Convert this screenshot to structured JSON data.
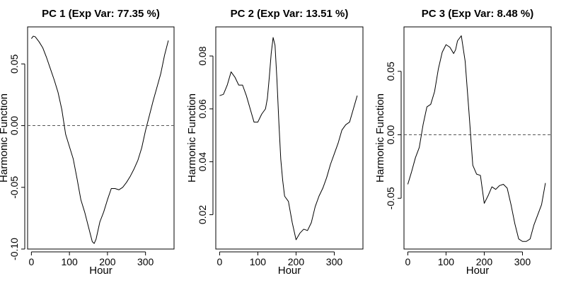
{
  "chart_data": [
    {
      "type": "line",
      "title": "PC 1 (Exp Var: 77.35 %)",
      "xlabel": "Hour",
      "ylabel": "Harmonic Function",
      "xlim": [
        -10,
        375
      ],
      "ylim": [
        -0.1,
        0.08
      ],
      "xticks": [
        "0",
        "100",
        "200",
        "300"
      ],
      "yticks": [
        "-0.10",
        "-0.05",
        "0.00",
        "0.05"
      ],
      "reference_line": 0,
      "series": [
        {
          "x": [
            0,
            5,
            10,
            20,
            30,
            40,
            50,
            60,
            70,
            80,
            90,
            100,
            110,
            120,
            130,
            140,
            150,
            160,
            165,
            170,
            180,
            190,
            200,
            210,
            220,
            230,
            240,
            250,
            260,
            270,
            280,
            290,
            300,
            310,
            320,
            330,
            340,
            350,
            360
          ],
          "y": [
            0.0705,
            0.0725,
            0.072,
            0.068,
            0.063,
            0.055,
            0.046,
            0.037,
            0.027,
            0.013,
            -0.007,
            -0.017,
            -0.027,
            -0.043,
            -0.06,
            -0.07,
            -0.082,
            -0.094,
            -0.0955,
            -0.092,
            -0.078,
            -0.07,
            -0.06,
            -0.051,
            -0.051,
            -0.052,
            -0.05,
            -0.046,
            -0.041,
            -0.035,
            -0.028,
            -0.018,
            -0.004,
            0.008,
            0.02,
            0.031,
            0.042,
            0.057,
            0.069
          ]
        }
      ]
    },
    {
      "type": "line",
      "title": "PC 2 (Exp Var: 13.51 %)",
      "xlabel": "Hour",
      "ylabel": "Harmonic Function",
      "xlim": [
        -10,
        375
      ],
      "ylim": [
        0.007,
        0.091
      ],
      "xticks": [
        "0",
        "100",
        "200",
        "300"
      ],
      "yticks": [
        "0.02",
        "0.04",
        "0.06",
        "0.08"
      ],
      "series": [
        {
          "x": [
            0,
            10,
            20,
            30,
            40,
            50,
            60,
            70,
            80,
            90,
            100,
            110,
            120,
            125,
            130,
            135,
            140,
            145,
            150,
            155,
            160,
            165,
            170,
            180,
            190,
            200,
            210,
            220,
            230,
            240,
            250,
            260,
            270,
            280,
            290,
            300,
            310,
            320,
            330,
            340,
            350,
            360
          ],
          "y": [
            0.065,
            0.0655,
            0.069,
            0.074,
            0.072,
            0.069,
            0.069,
            0.065,
            0.06,
            0.055,
            0.055,
            0.058,
            0.06,
            0.064,
            0.072,
            0.081,
            0.087,
            0.084,
            0.071,
            0.055,
            0.041,
            0.033,
            0.027,
            0.025,
            0.017,
            0.0105,
            0.013,
            0.0145,
            0.014,
            0.017,
            0.023,
            0.027,
            0.03,
            0.034,
            0.039,
            0.043,
            0.047,
            0.052,
            0.054,
            0.055,
            0.06,
            0.065
          ]
        }
      ]
    },
    {
      "type": "line",
      "title": "PC 3 (Exp Var: 8.48 %)",
      "xlabel": "Hour",
      "ylabel": "Harmonic Function",
      "xlim": [
        -10,
        375
      ],
      "ylim": [
        -0.09,
        0.085
      ],
      "xticks": [
        "0",
        "100",
        "200",
        "300"
      ],
      "yticks": [
        "-0.05",
        "0.00",
        "0.05"
      ],
      "reference_line": 0,
      "series": [
        {
          "x": [
            0,
            10,
            20,
            30,
            40,
            50,
            60,
            70,
            80,
            90,
            100,
            110,
            120,
            125,
            130,
            140,
            150,
            160,
            170,
            180,
            190,
            200,
            210,
            220,
            230,
            240,
            250,
            260,
            270,
            280,
            290,
            300,
            310,
            320,
            330,
            340,
            350,
            360
          ],
          "y": [
            -0.039,
            -0.029,
            -0.018,
            -0.01,
            0.008,
            0.022,
            0.024,
            0.034,
            0.052,
            0.065,
            0.071,
            0.069,
            0.064,
            0.067,
            0.074,
            0.078,
            0.058,
            0.018,
            -0.024,
            -0.031,
            -0.032,
            -0.054,
            -0.048,
            -0.041,
            -0.043,
            -0.04,
            -0.039,
            -0.042,
            -0.055,
            -0.07,
            -0.082,
            -0.084,
            -0.084,
            -0.082,
            -0.071,
            -0.063,
            -0.055,
            -0.038
          ]
        }
      ]
    }
  ]
}
